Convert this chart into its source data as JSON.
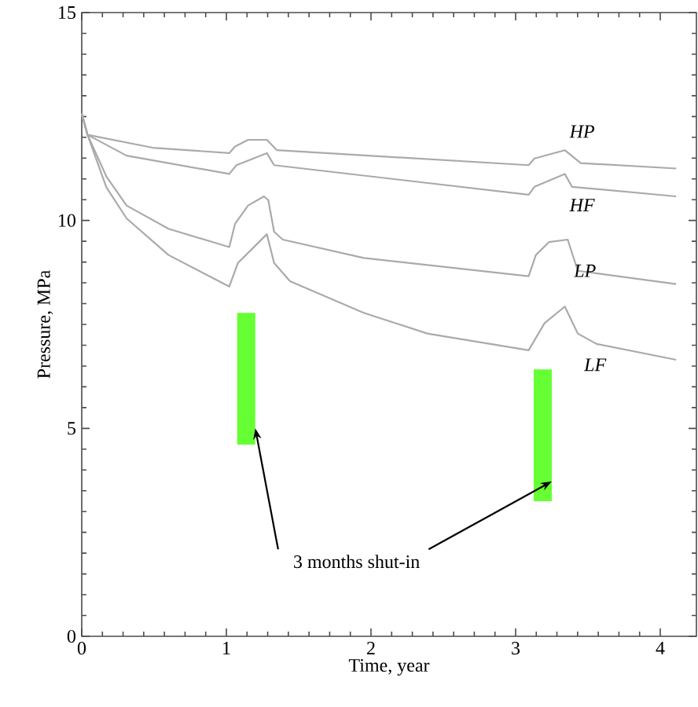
{
  "chart_data": {
    "type": "line",
    "xlabel": "Time, year",
    "ylabel": "Pressure, MPa",
    "xlim": [
      0,
      4.25
    ],
    "ylim": [
      0,
      15
    ],
    "xticks": [
      0,
      1,
      2,
      3,
      4
    ],
    "yticks": [
      0,
      5,
      10,
      15
    ],
    "grid": false,
    "marker": "none",
    "line_style": "solid",
    "series": [
      {
        "name": "HP",
        "color": "#aaaaaa",
        "x": [
          0,
          0.04,
          0.49,
          1.02,
          1.06,
          1.15,
          1.28,
          1.35,
          3.09,
          3.13,
          3.34,
          3.45,
          4.11
        ],
        "values": [
          12.57,
          12.06,
          11.75,
          11.62,
          11.78,
          11.94,
          11.94,
          11.69,
          11.33,
          11.49,
          11.69,
          11.38,
          11.25
        ]
      },
      {
        "name": "HF",
        "color": "#aaaaaa",
        "x": [
          0,
          0.04,
          0.31,
          1.02,
          1.07,
          1.28,
          1.33,
          3.09,
          3.13,
          3.34,
          3.39,
          4.11
        ],
        "values": [
          12.57,
          12.06,
          11.56,
          11.12,
          11.33,
          11.62,
          11.33,
          10.62,
          10.81,
          11.12,
          10.81,
          10.58
        ]
      },
      {
        "name": "LP",
        "color": "#aaaaaa",
        "x": [
          0,
          0.04,
          0.17,
          0.31,
          0.6,
          1.02,
          1.06,
          1.15,
          1.26,
          1.29,
          1.33,
          1.39,
          1.95,
          3.09,
          3.14,
          3.23,
          3.36,
          3.43,
          4.11
        ],
        "values": [
          12.57,
          12.06,
          11.06,
          10.36,
          9.8,
          9.36,
          9.92,
          10.36,
          10.58,
          10.49,
          9.73,
          9.54,
          9.1,
          8.66,
          9.17,
          9.48,
          9.54,
          8.79,
          8.47
        ]
      },
      {
        "name": "LF",
        "color": "#aaaaaa",
        "x": [
          0,
          0.04,
          0.17,
          0.31,
          0.6,
          1.02,
          1.08,
          1.28,
          1.33,
          1.44,
          1.95,
          2.39,
          3.09,
          3.2,
          3.34,
          3.43,
          3.56,
          4.11
        ],
        "values": [
          12.57,
          12.06,
          10.8,
          10.05,
          9.17,
          8.41,
          8.98,
          9.67,
          8.98,
          8.54,
          7.78,
          7.28,
          6.88,
          7.53,
          7.93,
          7.28,
          7.03,
          6.65
        ]
      },
      {
        "type": "bar",
        "color": "#66ff33",
        "x": [
          1.2,
          3.25
        ],
        "base": [
          4.61,
          3.25
        ],
        "values": [
          3.17,
          3.17
        ]
      }
    ],
    "annotations": [
      {
        "text": "3 months shut-in",
        "x": 1.2,
        "y": 5.0
      }
    ]
  }
}
